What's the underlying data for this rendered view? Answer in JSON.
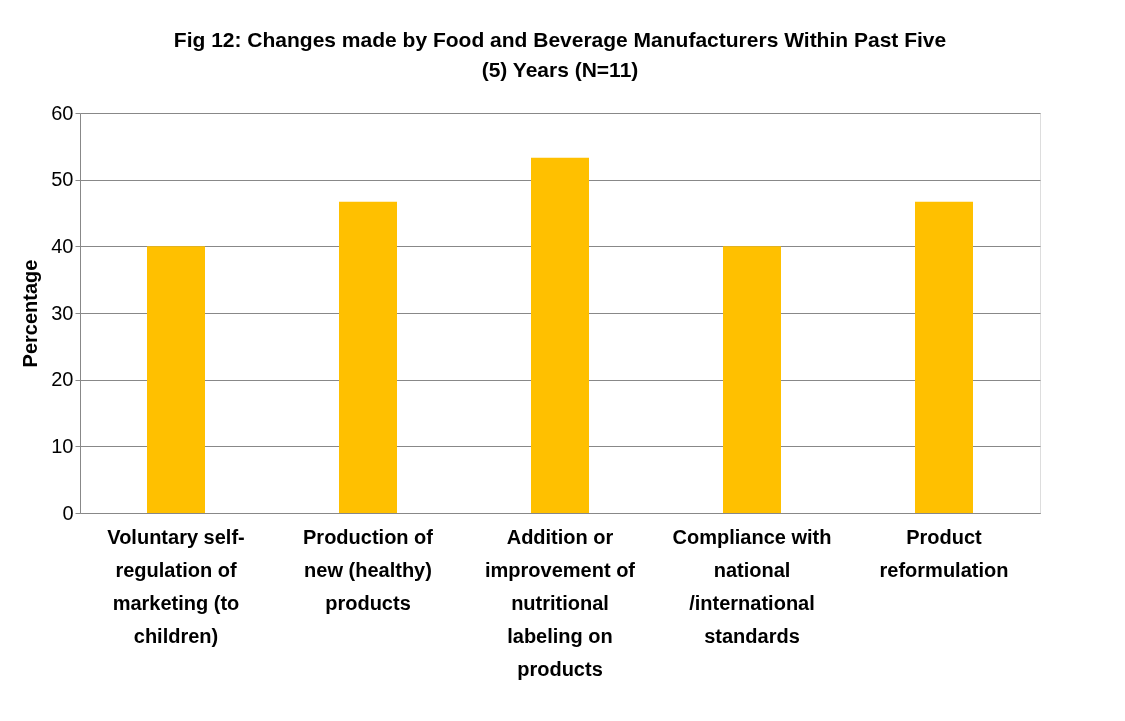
{
  "chart_data": {
    "type": "bar",
    "title": "Fig 12: Changes made by Food and Beverage Manufacturers Within Past Five (5) Years  (N=11)",
    "ylabel": "Percentage",
    "categories": [
      "Voluntary self-regulation of marketing  (to children)",
      "Production of new (healthy) products",
      "Addition or improvement of nutritional labeling on products",
      "Compliance with national /international standards",
      "Product reformulation"
    ],
    "values": [
      40,
      46.7,
      53.3,
      40,
      46.7
    ],
    "color": "#ffc000",
    "ylim": [
      0,
      60
    ],
    "yticks": [
      0,
      10,
      20,
      30,
      40,
      50,
      60
    ],
    "grid": "y"
  }
}
